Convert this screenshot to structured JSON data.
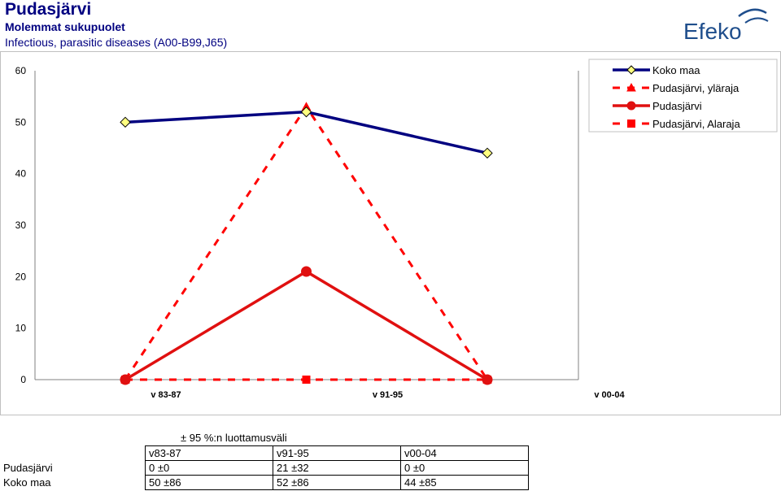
{
  "header": {
    "title": "Pudasjärvi",
    "subtitle": "Molemmat sukupuolet",
    "subtitle2": "Infectious, parasitic diseases (A00-B99,J65)",
    "logo_text": "Efeko"
  },
  "chart_data": {
    "type": "line",
    "categories": [
      "v 83-87",
      "v 91-95",
      "v 00-04"
    ],
    "ylim": [
      0,
      60
    ],
    "yticks": [
      0,
      10,
      20,
      30,
      40,
      50,
      60
    ],
    "grid": false,
    "legend_position": "top-right",
    "series": [
      {
        "name": "Koko maa",
        "values": [
          50,
          52,
          44
        ],
        "color": "#000080",
        "marker": "diamond",
        "dash": "solid",
        "marker_fill": "#ffff80"
      },
      {
        "name": "Pudasjärvi, yläraja",
        "values": [
          0,
          53,
          0
        ],
        "color": "#ff0000",
        "marker": "triangle",
        "dash": "dashed",
        "marker_fill": "#ff0000"
      },
      {
        "name": "Pudasjärvi",
        "values": [
          0,
          21,
          0
        ],
        "color": "#e01010",
        "marker": "circle",
        "dash": "solid",
        "marker_fill": "#e01010"
      },
      {
        "name": "Pudasjärvi, Alaraja",
        "values": [
          0,
          0,
          0
        ],
        "color": "#ff0000",
        "marker": "square",
        "dash": "dashed",
        "marker_fill": "#ff0000"
      }
    ]
  },
  "table": {
    "caption": "± 95 %:n luottamusväli",
    "columns": [
      "v83-87",
      "v91-95",
      "v00-04"
    ],
    "rows": [
      {
        "label": "Pudasjärvi",
        "cells": [
          "0 ±0",
          "21 ±32",
          "0 ±0"
        ]
      },
      {
        "label": "Koko maa",
        "cells": [
          "50 ±86",
          "52 ±86",
          "44 ±85"
        ]
      }
    ]
  }
}
